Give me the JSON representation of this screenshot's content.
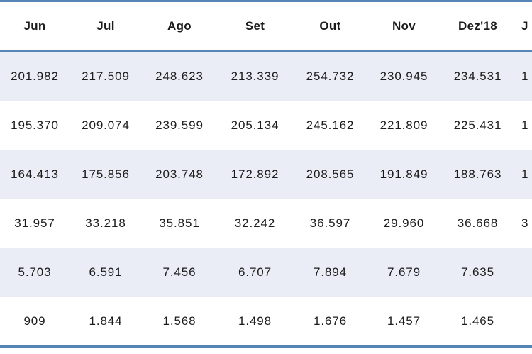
{
  "table": {
    "columns": [
      "Jun",
      "Jul",
      "Ago",
      "Set",
      "Out",
      "Nov",
      "Dez'18"
    ],
    "rows": [
      [
        "201.982",
        "217.509",
        "248.623",
        "213.339",
        "254.732",
        "230.945",
        "234.531"
      ],
      [
        "195.370",
        "209.074",
        "239.599",
        "205.134",
        "245.162",
        "221.809",
        "225.431"
      ],
      [
        "164.413",
        "175.856",
        "203.748",
        "172.892",
        "208.565",
        "191.849",
        "188.763"
      ],
      [
        "31.957",
        "33.218",
        "35.851",
        "32.242",
        "36.597",
        "29.960",
        "36.668"
      ],
      [
        "5.703",
        "6.591",
        "7.456",
        "6.707",
        "7.894",
        "7.679",
        "7.635"
      ],
      [
        "909",
        "1.844",
        "1.568",
        "1.498",
        "1.676",
        "1.457",
        "1.465"
      ]
    ],
    "clipped_column": {
      "header_fragment": "J",
      "value_fragments": [
        "1",
        "1",
        "1",
        "3",
        "",
        ""
      ]
    },
    "colors": {
      "border_blue": "#5585B5",
      "banded_row": "#EAEDF5",
      "text": "#1c1c1c",
      "background": "#ffffff"
    }
  }
}
